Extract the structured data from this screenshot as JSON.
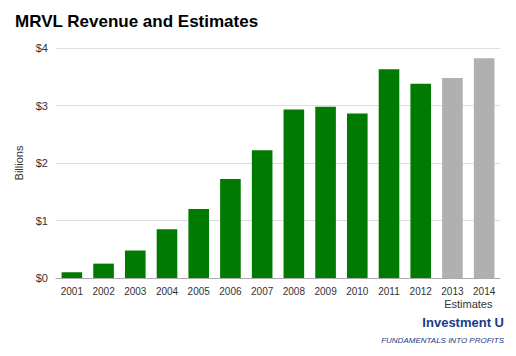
{
  "chart_data": {
    "type": "bar",
    "title": "MRVL Revenue and Estimates",
    "y_label": "Billions",
    "annotations": [
      "Estimates",
      "Investment U",
      "FUNDAMENTALS INTO PROFITS"
    ],
    "categories": [
      "2001",
      "2002",
      "2003",
      "2004",
      "2005",
      "2006",
      "2007",
      "2008",
      "2009",
      "2010",
      "2011",
      "2012",
      "2013",
      "2014"
    ],
    "values": [
      0.1,
      0.25,
      0.48,
      0.85,
      1.2,
      1.72,
      2.22,
      2.93,
      2.98,
      2.86,
      3.63,
      3.38,
      3.48,
      3.82
    ],
    "colors": [
      "#007a00",
      "#007a00",
      "#007a00",
      "#007a00",
      "#007a00",
      "#007a00",
      "#007a00",
      "#007a00",
      "#007a00",
      "#007a00",
      "#007a00",
      "#007a00",
      "#b0b0b0",
      "#b0b0b0"
    ],
    "ylim": [
      0,
      4.0
    ],
    "yticks": [
      {
        "value": 0,
        "label": "$0"
      },
      {
        "value": 1,
        "label": "$1"
      },
      {
        "value": 2,
        "label": "$2"
      },
      {
        "value": 3,
        "label": "$3"
      },
      {
        "value": 4,
        "label": "$4"
      }
    ],
    "grid": true
  }
}
